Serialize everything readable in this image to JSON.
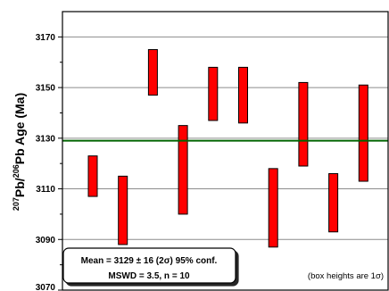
{
  "chart_data": {
    "type": "error-box",
    "ylabel": {
      "sup1": "207",
      "part1": "Pb/",
      "sup2": "206",
      "part2": "Pb Age (Ma)"
    },
    "ylim": [
      3070,
      3180
    ],
    "ytick_labels": [
      "3070",
      "3090",
      "3110",
      "3130",
      "3150",
      "3170"
    ],
    "yticks": [
      3070,
      3090,
      3110,
      3130,
      3150,
      3170
    ],
    "minor_yticks": [
      3080,
      3100,
      3120,
      3140,
      3160
    ],
    "n_boxes": 10,
    "boxes": [
      {
        "low": 3107,
        "high": 3123
      },
      {
        "low": 3088,
        "high": 3115
      },
      {
        "low": 3147,
        "high": 3165
      },
      {
        "low": 3100,
        "high": 3135
      },
      {
        "low": 3137,
        "high": 3158
      },
      {
        "low": 3136,
        "high": 3158
      },
      {
        "low": 3087,
        "high": 3118
      },
      {
        "low": 3119,
        "high": 3152
      },
      {
        "low": 3093,
        "high": 3116
      },
      {
        "low": 3113,
        "high": 3151
      }
    ],
    "mean_line": 3129,
    "colors": {
      "box_fill": "#ff0000",
      "box_stroke": "#000000",
      "mean_line": "#006400",
      "grid": "#8c8c8c"
    },
    "stats_box": {
      "line1": "Mean = 3129 ± 16 (2σ)  95% conf.",
      "line2": "MSWD = 3.5, n = 10"
    },
    "note": "(box heights are 1σ)"
  }
}
